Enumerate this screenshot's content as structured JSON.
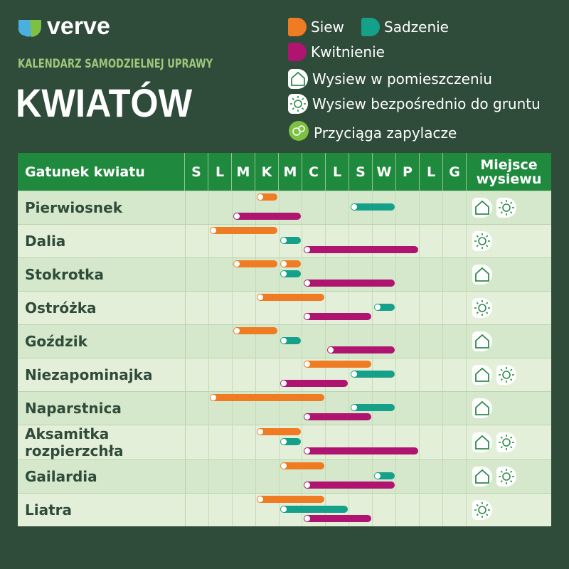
{
  "brand": "verve",
  "subtitle": "KALENDARZ SAMODZIELNEJ UPRAWY",
  "title": "KWIATÓW",
  "chart_data": {
    "type": "gantt",
    "row_header": "Gatunek kwiatu",
    "place_header": "Miejsce wysiewu",
    "categories": [
      "S",
      "L",
      "M",
      "K",
      "M",
      "C",
      "L",
      "S",
      "W",
      "P",
      "L",
      "G"
    ],
    "xlim": [
      0,
      12
    ],
    "rows": [
      "Pierwiosnek",
      "Dalia",
      "Stokrotka",
      "Ostróżka",
      "Goździk",
      "Niezapominajka",
      "Naparstnica",
      "Aksamitka rozpierzchła",
      "Gailardia",
      "Liatra"
    ],
    "series": [
      {
        "name": "Siew",
        "color": "#ef7b22",
        "values": [
          [
            [
              3,
              4
            ]
          ],
          [
            [
              1,
              4
            ]
          ],
          [
            [
              2,
              4
            ],
            [
              4,
              5
            ]
          ],
          [
            [
              3,
              6
            ]
          ],
          [
            [
              2,
              4
            ]
          ],
          [
            [
              5,
              8
            ]
          ],
          [
            [
              1,
              6
            ]
          ],
          [
            [
              3,
              5
            ]
          ],
          [
            [
              4,
              6
            ]
          ],
          [
            [
              3,
              6
            ]
          ]
        ]
      },
      {
        "name": "Sadzenie",
        "color": "#15a08a",
        "values": [
          [
            [
              7,
              9
            ]
          ],
          [
            [
              4,
              5
            ]
          ],
          [
            [
              4,
              5
            ]
          ],
          [
            [
              8,
              9
            ]
          ],
          [
            [
              4,
              5
            ]
          ],
          [
            [
              7,
              9
            ]
          ],
          [
            [
              7,
              9
            ]
          ],
          [
            [
              4,
              5
            ]
          ],
          [
            [
              8,
              9
            ]
          ],
          [
            [
              4,
              7
            ]
          ]
        ]
      },
      {
        "name": "Kwitnienie",
        "color": "#ae1470",
        "values": [
          [
            [
              2,
              5
            ]
          ],
          [
            [
              5,
              10
            ]
          ],
          [
            [
              5,
              9
            ]
          ],
          [
            [
              5,
              8
            ]
          ],
          [
            [
              6,
              9
            ]
          ],
          [
            [
              4,
              7
            ]
          ],
          [
            [
              5,
              8
            ]
          ],
          [
            [
              5,
              10
            ]
          ],
          [
            [
              5,
              9
            ]
          ],
          [
            [
              5,
              8
            ]
          ]
        ]
      }
    ],
    "places": {
      "indoor": {
        "label": "Wysiew w pomieszczeniu",
        "values": [
          true,
          false,
          true,
          false,
          true,
          true,
          true,
          true,
          true,
          false
        ]
      },
      "direct": {
        "label": "Wysiew bezpośrednio do gruntu",
        "values": [
          true,
          true,
          false,
          true,
          false,
          true,
          false,
          true,
          true,
          true
        ]
      }
    },
    "pollinator_label": "Przyciąga zapylacze"
  }
}
